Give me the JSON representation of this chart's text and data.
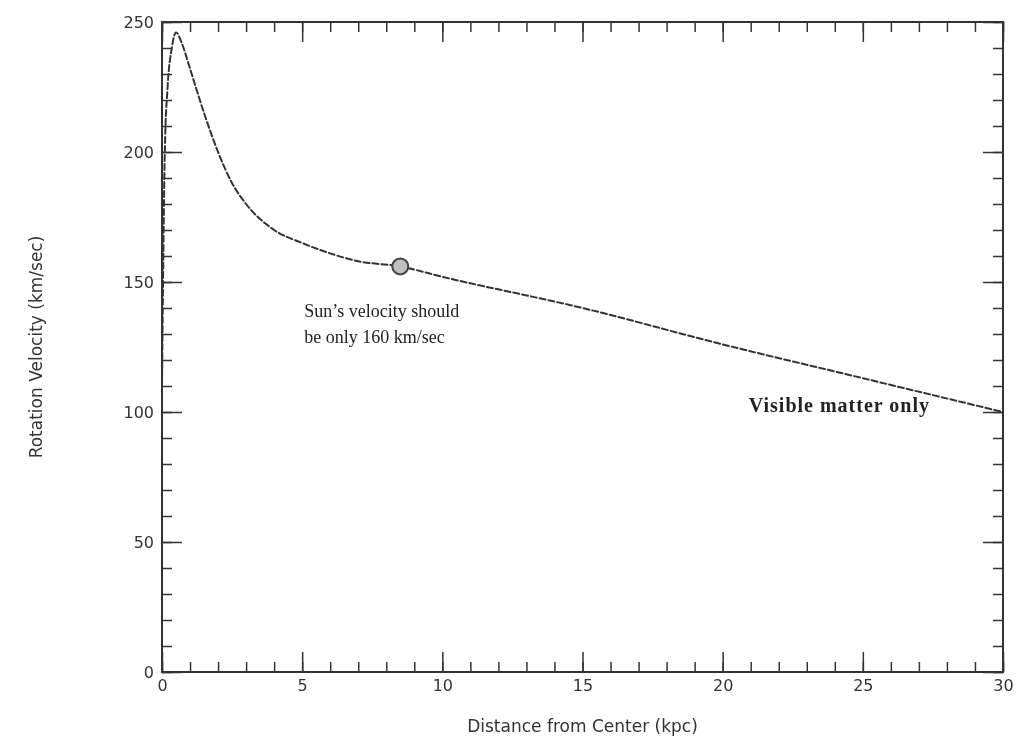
{
  "chart_data": {
    "type": "line",
    "xlabel": "Distance from Center (kpc)",
    "ylabel": "Rotation Velocity (km/sec)",
    "xlim": [
      0,
      30
    ],
    "xticks": [
      0,
      5,
      10,
      15,
      20,
      25,
      30
    ],
    "ylim": [
      0,
      250
    ],
    "yticks": [
      0,
      50,
      100,
      150,
      200,
      250
    ],
    "grid": false,
    "line_style": "dashed",
    "series": [
      {
        "color": "#333333",
        "x": [
          0,
          0.1,
          0.2,
          0.35,
          0.5,
          0.7,
          1,
          1.5,
          2,
          2.5,
          3,
          4,
          5,
          6,
          7,
          8.5,
          10,
          15,
          20,
          25,
          30
        ],
        "values": [
          110,
          200,
          225,
          240,
          246,
          242,
          232,
          215,
          200,
          188,
          180,
          170,
          165,
          161,
          158,
          156,
          152,
          140,
          126,
          113,
          100
        ]
      },
      {
        "type": "scatter",
        "color": "#c0c0c0",
        "marker": "circle",
        "x": [
          8.5
        ],
        "values": [
          156
        ]
      }
    ],
    "annotations": [
      {
        "text": "Sun’s velocity should be only 160 km/sec",
        "x": 8.5,
        "y": 156
      },
      "Visible matter only"
    ]
  }
}
